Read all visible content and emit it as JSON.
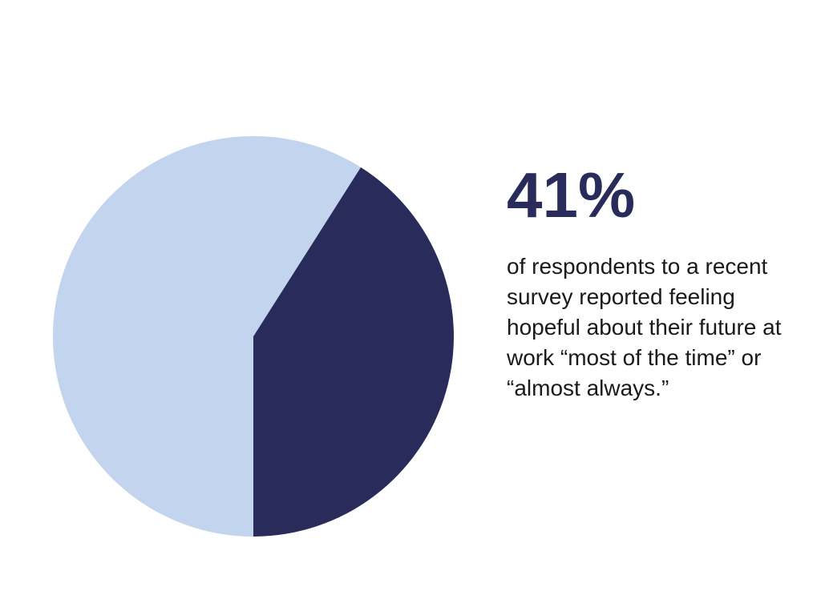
{
  "colors": {
    "primary": "#292b5b",
    "secondary": "#c3d4ee",
    "caption_text": "#1a1a1a",
    "background": "#ffffff"
  },
  "stat": {
    "value": "41%",
    "caption": "of respondents to a recent survey reported feeling hopeful about their future at work “most of the time” or “almost always.”"
  },
  "chart_data": {
    "type": "pie",
    "slices": [
      {
        "label": "",
        "value": 41,
        "color": "#292b5b"
      },
      {
        "label": "",
        "value": 59,
        "color": "#c3d4ee"
      }
    ],
    "title": "",
    "legend": "none"
  }
}
